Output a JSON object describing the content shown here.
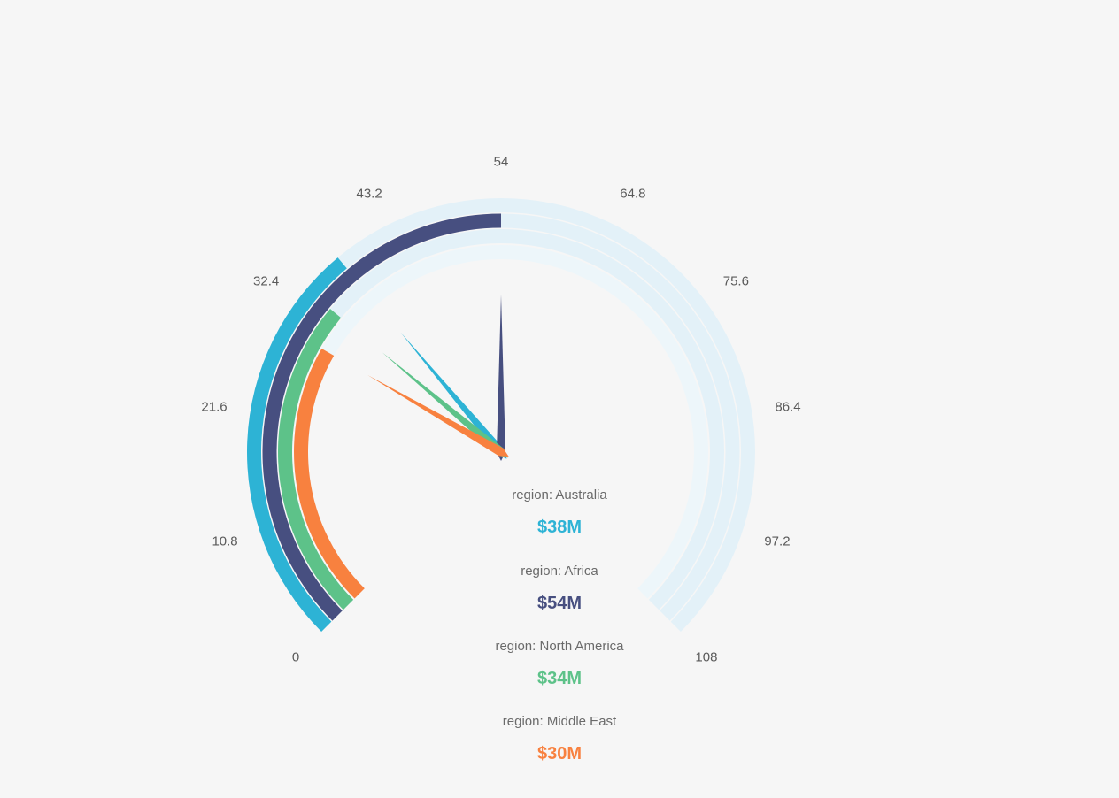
{
  "page": {
    "background_color": "#f6f6f6"
  },
  "chart_data": {
    "type": "gauge",
    "min": 0,
    "max": 108,
    "start_angle": 225,
    "end_angle": -45,
    "grid": false,
    "axis_tick_labels": [
      "0",
      "10.8",
      "21.6",
      "32.4",
      "43.2",
      "54",
      "64.8",
      "75.6",
      "86.4",
      "97.2",
      "108"
    ],
    "axis_label_color": "#5a5a5a",
    "title_color": "#6a6a6a",
    "legend_position": "below-center",
    "series": [
      {
        "name": "Australia",
        "title": "region: Australia",
        "value": 38,
        "display_value": "$38M",
        "color": "#2db3d5",
        "track_color": "#e3f1f8"
      },
      {
        "name": "Africa",
        "title": "region: Africa",
        "value": 54,
        "display_value": "$54M",
        "color": "#474f80",
        "track_color": "#e3f1f8"
      },
      {
        "name": "North America",
        "title": "region: North America",
        "value": 34,
        "display_value": "$34M",
        "color": "#5dc289",
        "track_color": "#e3f1f8"
      },
      {
        "name": "Middle East",
        "title": "region: Middle East",
        "value": 30,
        "display_value": "$30M",
        "color": "#f8813f",
        "track_color": "#edf6fa"
      }
    ]
  }
}
